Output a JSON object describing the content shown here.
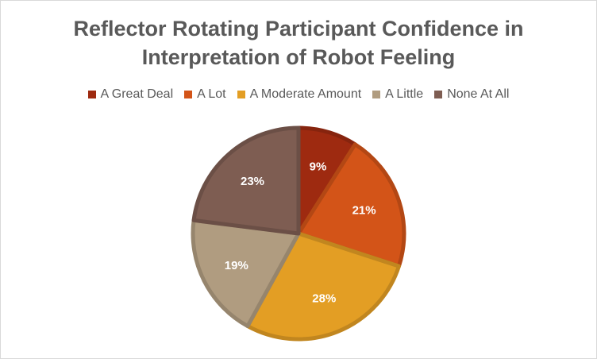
{
  "chart_data": {
    "type": "pie",
    "title": "Reflector Rotating Participant Confidence in Interpretation of Robot Feeling",
    "title_lines": [
      "Reflector Rotating Participant Confidence in",
      "Interpretation of Robot Feeling"
    ],
    "categories": [
      "A Great Deal",
      "A Lot",
      "A Moderate Amount",
      "A Little",
      "None At All"
    ],
    "values": [
      9,
      21,
      28,
      19,
      23
    ],
    "value_labels": [
      "9%",
      "21%",
      "28%",
      "19%",
      "23%"
    ],
    "colors": [
      "#9e2a10",
      "#d35418",
      "#e39e24",
      "#b09c80",
      "#7e5d52"
    ],
    "legend_position": "top",
    "grid": false
  }
}
